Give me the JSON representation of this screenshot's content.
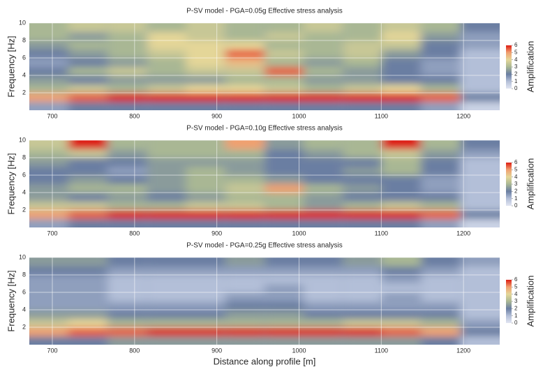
{
  "chart_data": [
    {
      "type": "heatmap",
      "title": "P-SV model - PGA=0.05g Effective stress analysis",
      "ylabel": "Frequency [Hz]",
      "colorbar_label": "Amplification",
      "x": [
        696,
        743,
        791,
        839,
        886,
        934,
        982,
        1029,
        1077,
        1124,
        1172,
        1220
      ],
      "y": [
        0.5,
        1.5,
        2.5,
        3.5,
        4.5,
        5.5,
        6.5,
        7.5,
        8.5,
        9.5
      ],
      "values": [
        [
          1.5,
          2,
          2,
          2,
          2,
          2,
          2,
          2,
          2,
          2,
          1.5,
          0.5
        ],
        [
          5,
          5.5,
          6,
          6,
          6,
          6,
          6,
          6,
          6,
          6,
          5.5,
          2
        ],
        [
          3,
          3.5,
          3,
          3.5,
          4,
          4,
          3.5,
          3,
          3.5,
          4,
          3,
          1
        ],
        [
          2.5,
          2,
          2.5,
          2.5,
          2.5,
          3,
          3,
          2.5,
          2.5,
          2,
          2,
          1
        ],
        [
          2,
          3,
          3.5,
          3,
          3.5,
          3.5,
          5.5,
          3,
          2.5,
          2,
          1.5,
          1
        ],
        [
          1.5,
          2,
          2.5,
          3,
          4,
          4.5,
          3,
          2.5,
          3,
          2,
          1.5,
          1
        ],
        [
          2,
          2.5,
          3,
          3.5,
          4,
          5.5,
          3.5,
          3,
          3.5,
          2.5,
          2,
          1
        ],
        [
          2.5,
          3,
          3,
          4,
          4,
          4,
          3,
          3,
          3.5,
          3.5,
          2,
          1.5
        ],
        [
          3,
          2.5,
          3,
          4,
          3.5,
          3,
          3.5,
          3,
          3,
          4,
          2.5,
          1.5
        ],
        [
          3,
          3.5,
          3.5,
          3,
          3.5,
          3,
          3,
          3.5,
          3,
          3.5,
          3,
          2
        ]
      ],
      "xlim": [
        672,
        1244
      ],
      "ylim": [
        0,
        10
      ],
      "xticks": [
        700,
        800,
        900,
        1000,
        1100,
        1200
      ],
      "yticks": [
        2,
        4,
        6,
        8,
        10
      ],
      "zlim": [
        0,
        6
      ],
      "zticks": [
        0,
        1,
        2,
        3,
        4,
        5,
        6
      ],
      "colormap": [
        "#e2e6f2",
        "#b3bfd8",
        "#6a7ea2",
        "#a9b794",
        "#e4d698",
        "#f0a070",
        "#dd1c12"
      ],
      "grid": true
    },
    {
      "type": "heatmap",
      "title": "P-SV model - PGA=0.10g Effective stress analysis",
      "ylabel": "Frequency [Hz]",
      "colorbar_label": "Amplification",
      "x": [
        696,
        743,
        791,
        839,
        886,
        934,
        982,
        1029,
        1077,
        1124,
        1172,
        1220
      ],
      "y": [
        0.5,
        1.5,
        2.5,
        3.5,
        4.5,
        5.5,
        6.5,
        7.5,
        8.5,
        9.5
      ],
      "values": [
        [
          1.5,
          2,
          2,
          2,
          2,
          2,
          2,
          2,
          2,
          2,
          1.5,
          0.5
        ],
        [
          5,
          5.5,
          6,
          6,
          6,
          6,
          6,
          6,
          6,
          6,
          5.5,
          2
        ],
        [
          3.5,
          3.5,
          3,
          3,
          3.5,
          3.5,
          3,
          2.5,
          3,
          3.5,
          3,
          1
        ],
        [
          2.5,
          2,
          2.5,
          2,
          2.5,
          3,
          3,
          2.5,
          2,
          2,
          2,
          1
        ],
        [
          2.5,
          3,
          3,
          2.5,
          3,
          3.5,
          5,
          3,
          2.5,
          2,
          1.5,
          1
        ],
        [
          2,
          2.5,
          2,
          2.5,
          3,
          3,
          2.5,
          2,
          2,
          2,
          1.5,
          1
        ],
        [
          2,
          2,
          1.5,
          2.5,
          3,
          2.5,
          2,
          2,
          2.5,
          3,
          2,
          1
        ],
        [
          2.5,
          2,
          2,
          2.5,
          2.5,
          2.5,
          2,
          2,
          2,
          3,
          2,
          1
        ],
        [
          3,
          3.5,
          2.5,
          3,
          3,
          3,
          2,
          2.5,
          3,
          3.5,
          2.5,
          1.5
        ],
        [
          3.5,
          6,
          3,
          3,
          3,
          5,
          2.5,
          3,
          3,
          6,
          3,
          2
        ]
      ],
      "xlim": [
        672,
        1244
      ],
      "ylim": [
        0,
        10
      ],
      "xticks": [
        700,
        800,
        900,
        1000,
        1100,
        1200
      ],
      "yticks": [
        2,
        4,
        6,
        8,
        10
      ],
      "zlim": [
        0,
        6
      ],
      "zticks": [
        0,
        1,
        2,
        3,
        4,
        5,
        6
      ],
      "colormap": [
        "#e2e6f2",
        "#b3bfd8",
        "#6a7ea2",
        "#a9b794",
        "#e4d698",
        "#f0a070",
        "#dd1c12"
      ],
      "grid": true
    },
    {
      "type": "heatmap",
      "title": "P-SV model - PGA=0.25g Effective stress analysis",
      "ylabel": "Frequency [Hz]",
      "colorbar_label": "Amplification",
      "xlabel": "Distance along profile [m]",
      "x": [
        696,
        743,
        791,
        839,
        886,
        934,
        982,
        1029,
        1077,
        1124,
        1172,
        1220
      ],
      "y": [
        0.5,
        1.5,
        2.5,
        3.5,
        4.5,
        5.5,
        6.5,
        7.5,
        8.5,
        9.5
      ],
      "values": [
        [
          2,
          2,
          2.5,
          2.5,
          2.5,
          2.5,
          2.5,
          2.5,
          2.5,
          2.5,
          2,
          1
        ],
        [
          5,
          5.5,
          5.5,
          6,
          6,
          6,
          6,
          6,
          6,
          5.5,
          5,
          2
        ],
        [
          3.5,
          4,
          3,
          3,
          3,
          3,
          3,
          3,
          3.5,
          3.5,
          3,
          1.5
        ],
        [
          2.5,
          2.5,
          2,
          2,
          2,
          2.5,
          2.5,
          2,
          2,
          2,
          2,
          1
        ],
        [
          1.5,
          1.5,
          1.5,
          1.5,
          1.5,
          2,
          2,
          1.5,
          1.5,
          1.5,
          1.5,
          1
        ],
        [
          1.5,
          1.5,
          1,
          1,
          1,
          1.5,
          1.5,
          1,
          1,
          1.5,
          1,
          1
        ],
        [
          1.5,
          1.5,
          1,
          1,
          1,
          1,
          1.5,
          1,
          1,
          1,
          1,
          1
        ],
        [
          1.5,
          1.5,
          1,
          1,
          1,
          1,
          1,
          1,
          1,
          1.5,
          1,
          1
        ],
        [
          2,
          2,
          1.5,
          1.5,
          1.5,
          1.5,
          1.5,
          1.5,
          1.5,
          2,
          1.5,
          1
        ],
        [
          2.5,
          2.5,
          2,
          2,
          2,
          2.5,
          2,
          2,
          2.5,
          3,
          2,
          1.5
        ]
      ],
      "xlim": [
        672,
        1244
      ],
      "ylim": [
        0,
        10
      ],
      "xticks": [
        700,
        800,
        900,
        1000,
        1100,
        1200
      ],
      "yticks": [
        2,
        4,
        6,
        8,
        10
      ],
      "zlim": [
        0,
        6
      ],
      "zticks": [
        0,
        1,
        2,
        3,
        4,
        5,
        6
      ],
      "colormap": [
        "#e2e6f2",
        "#b3bfd8",
        "#6a7ea2",
        "#a9b794",
        "#e4d698",
        "#f0a070",
        "#dd1c12"
      ],
      "grid": true
    }
  ]
}
